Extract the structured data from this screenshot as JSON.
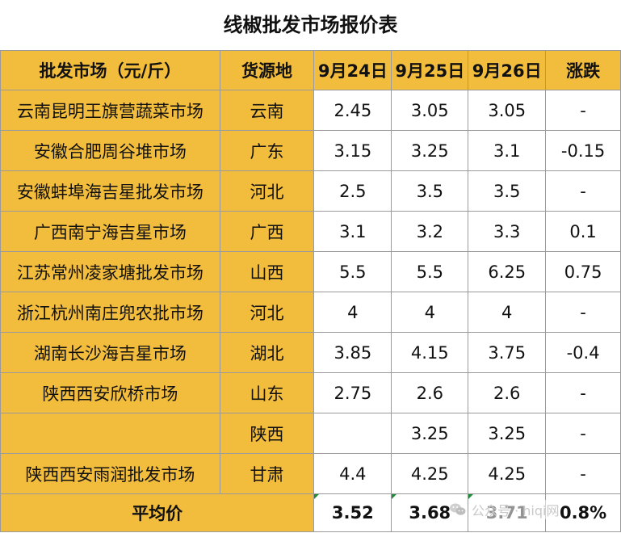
{
  "title": "线椒批发市场报价表",
  "headers": {
    "market": "批发市场（元/斤）",
    "origin": "货源地",
    "d1": "9月24日",
    "d2": "9月25日",
    "d3": "9月26日",
    "change": "涨跌"
  },
  "rows": [
    {
      "market": "云南昆明王旗营蔬菜市场",
      "origin": "云南",
      "d1": "2.45",
      "d2": "3.05",
      "d3": "3.05",
      "change": "-"
    },
    {
      "market": "安徽合肥周谷堆市场",
      "origin": "广东",
      "d1": "3.15",
      "d2": "3.25",
      "d3": "3.1",
      "change": "-0.15"
    },
    {
      "market": "安徽蚌埠海吉星批发市场",
      "origin": "河北",
      "d1": "2.5",
      "d2": "3.5",
      "d3": "3.5",
      "change": "-"
    },
    {
      "market": "广西南宁海吉星市场",
      "origin": "广西",
      "d1": "3.1",
      "d2": "3.2",
      "d3": "3.3",
      "change": "0.1"
    },
    {
      "market": "江苏常州凌家塘批发市场",
      "origin": "山西",
      "d1": "5.5",
      "d2": "5.5",
      "d3": "6.25",
      "change": "0.75"
    },
    {
      "market": "浙江杭州南庄兜农批市场",
      "origin": "河北",
      "d1": "4",
      "d2": "4",
      "d3": "4",
      "change": "-"
    },
    {
      "market": "湖南长沙海吉星市场",
      "origin": "湖北",
      "d1": "3.85",
      "d2": "4.15",
      "d3": "3.75",
      "change": "-0.4"
    },
    {
      "market": "陕西西安欣桥市场",
      "origin": "山东",
      "d1": "2.75",
      "d2": "2.6",
      "d3": "2.6",
      "change": "-"
    },
    {
      "market": "",
      "origin": "陕西",
      "d1": "",
      "d2": "3.25",
      "d3": "3.25",
      "change": "-"
    },
    {
      "market": "陕西西安雨润批发市场",
      "origin": "甘肃",
      "d1": "4.4",
      "d2": "4.25",
      "d3": "4.25",
      "change": "-"
    }
  ],
  "average": {
    "label": "平均价",
    "d1": "3.52",
    "d2": "3.68",
    "d3": "3.71",
    "change": "0.8%"
  },
  "watermark": "公众号 · hiqi网",
  "colors": {
    "header_bg": "#F2BC3C",
    "rise": "#E8101B",
    "fall": "#169C3A"
  }
}
